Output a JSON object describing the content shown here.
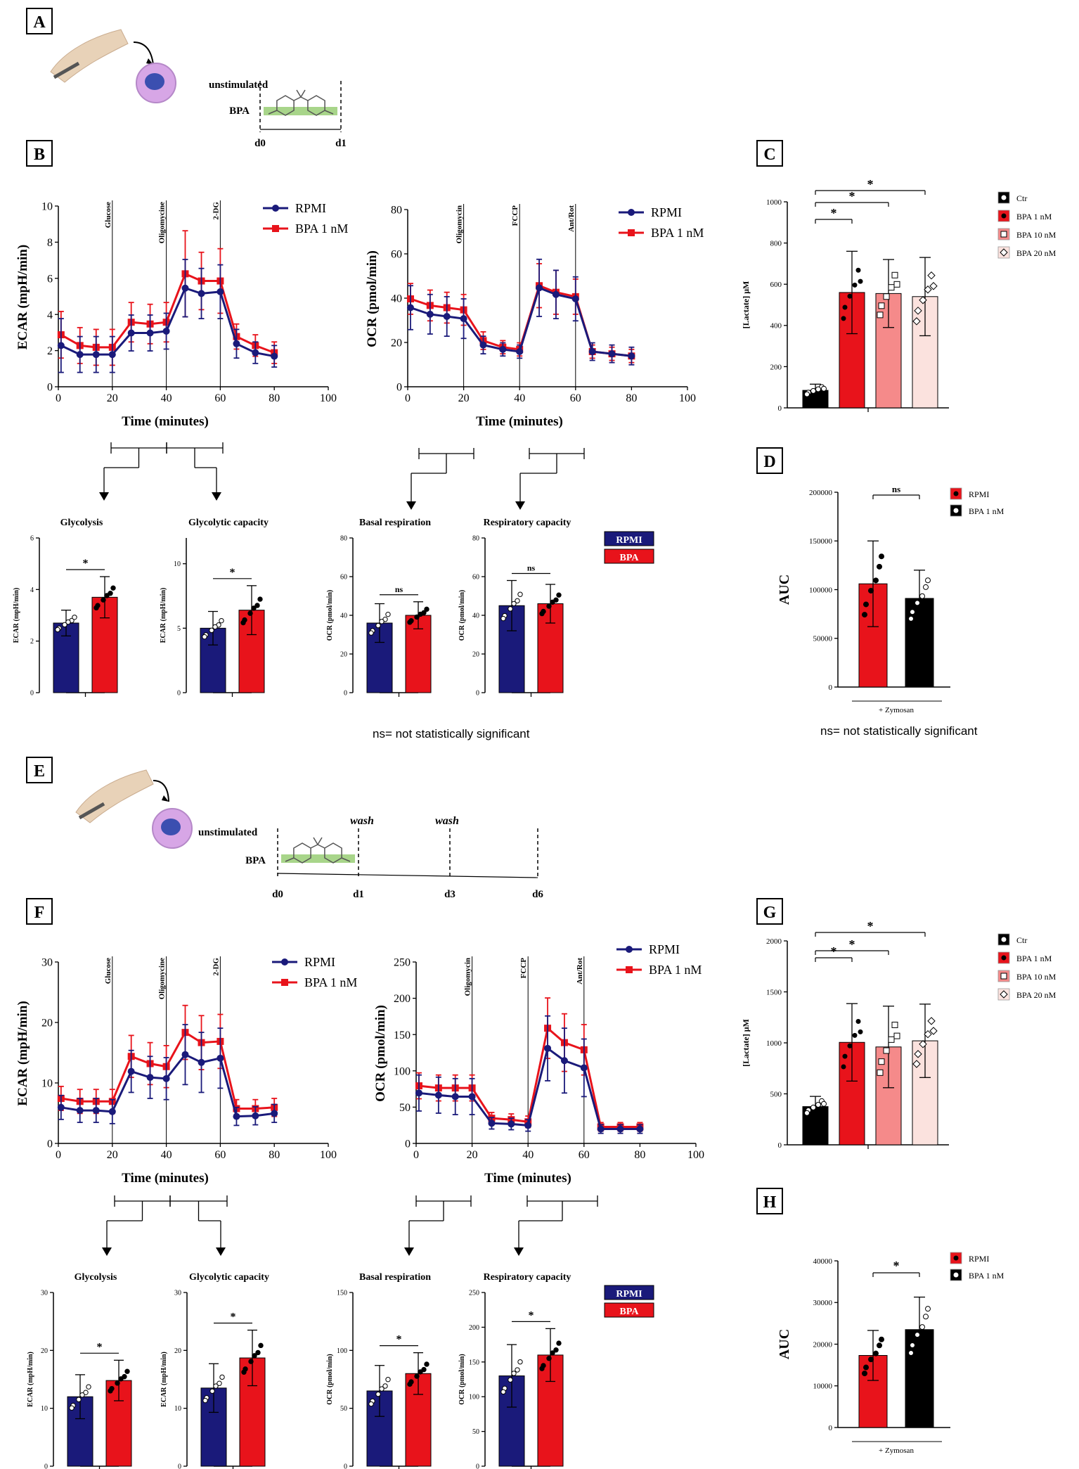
{
  "colors": {
    "rpmi": "#1a1a7a",
    "bpa": "#e8131b",
    "black": "#000000",
    "bpa10": "#f58a8a",
    "bpa20": "#fbe2de",
    "treat": "#a8d58a"
  },
  "panel_labels": [
    "A",
    "B",
    "C",
    "D",
    "E",
    "F",
    "G",
    "H"
  ],
  "schematic_A": {
    "unstimulated": "unstimulated",
    "bpa": "BPA",
    "days": [
      "d0",
      "d1"
    ]
  },
  "schematic_E": {
    "unstimulated": "unstimulated",
    "bpa": "BPA",
    "days": [
      "d0",
      "d1",
      "d3",
      "d6"
    ],
    "washes": [
      "wash",
      "wash"
    ]
  },
  "legend_seahorse": [
    "RPMI",
    "BPA 1 nM"
  ],
  "legend_box": [
    "RPMI",
    "BPA"
  ],
  "legend_lactate": [
    "Ctr",
    "BPA 1 nM",
    "BPA 10 nM",
    "BPA 20 nM"
  ],
  "legend_auc": [
    "RPMI",
    "BPA 1 nM"
  ],
  "labels": {
    "time_axis": "Time (minutes)",
    "ecar_axis": "ECAR (mpH/min)",
    "ocr_axis": "OCR (pmol/min)",
    "ecar_small": "ECAR (mpH/min)",
    "ocr_small": "OCR (pmol/min)",
    "lactate": "[Lactate] μM",
    "auc": "AUC",
    "zymosan": "+ Zymosan",
    "glycolysis": "Glycolysis",
    "glyco_cap": "Glycolytic capacity",
    "basal": "Basal respiration",
    "resp_cap": "Respiratory capacity",
    "injections_ecar": [
      "Glucose",
      "Oligomycine",
      "2-DG"
    ],
    "injections_ocr": [
      "Oligomycin",
      "FCCP",
      "Ant/Rot"
    ],
    "star": "*",
    "ns": "ns"
  },
  "notes": {
    "ns_note_B": "ns= not statistically significant",
    "ns_note_D": "ns= not statistically significant"
  },
  "chart_data": [
    {
      "id": "B_ecar",
      "type": "line",
      "title": "",
      "xlabel": "Time (minutes)",
      "ylabel": "ECAR (mpH/min)",
      "xlim": [
        0,
        100
      ],
      "ylim": [
        0,
        10
      ],
      "x": [
        1,
        8,
        14,
        20,
        27,
        34,
        40,
        47,
        53,
        60,
        66,
        73,
        80
      ],
      "series": [
        {
          "name": "RPMI",
          "values": [
            2.3,
            1.8,
            1.8,
            1.8,
            3.0,
            3.0,
            3.1,
            5.5,
            5.2,
            5.3,
            2.4,
            1.9,
            1.7
          ],
          "err": [
            1.5,
            1.0,
            1.0,
            1.0,
            1.0,
            1.0,
            1.0,
            1.6,
            1.4,
            1.5,
            0.8,
            0.6,
            0.6
          ]
        },
        {
          "name": "BPA 1 nM",
          "values": [
            2.9,
            2.3,
            2.2,
            2.2,
            3.6,
            3.5,
            3.6,
            6.3,
            5.9,
            5.9,
            2.8,
            2.3,
            1.9
          ],
          "err": [
            1.3,
            1.0,
            1.0,
            1.0,
            1.1,
            1.1,
            1.1,
            2.4,
            1.6,
            1.8,
            0.7,
            0.6,
            0.6
          ]
        }
      ]
    },
    {
      "id": "B_ocr",
      "type": "line",
      "title": "",
      "xlabel": "Time (minutes)",
      "ylabel": "OCR (pmol/min)",
      "xlim": [
        0,
        100
      ],
      "ylim": [
        0,
        80
      ],
      "x": [
        1,
        8,
        14,
        20,
        27,
        34,
        40,
        47,
        53,
        60,
        66,
        73,
        80
      ],
      "series": [
        {
          "name": "RPMI",
          "values": [
            36,
            33,
            32,
            31,
            19,
            17,
            16,
            45,
            42,
            40,
            16,
            15,
            14
          ],
          "err": [
            10,
            9,
            9,
            9,
            4,
            3,
            3,
            13,
            11,
            10,
            4,
            4,
            4
          ]
        },
        {
          "name": "BPA 1 nM",
          "values": [
            40,
            37,
            36,
            35,
            21,
            18,
            17,
            46,
            43,
            41,
            16,
            15,
            14
          ],
          "err": [
            7,
            7,
            7,
            7,
            4,
            3,
            3,
            10,
            10,
            8,
            3,
            3,
            3
          ]
        }
      ]
    },
    {
      "id": "B_glycolysis",
      "type": "bar",
      "title": "Glycolysis",
      "ylabel": "ECAR (mpH/min)",
      "ylim": [
        0,
        6
      ],
      "categories": [
        "RPMI",
        "BPA"
      ],
      "values": [
        2.7,
        3.7
      ],
      "err": [
        0.5,
        0.8
      ],
      "significance": "*"
    },
    {
      "id": "B_glyco_cap",
      "type": "bar",
      "title": "Glycolytic capacity",
      "ylabel": "ECAR (mpH/min)",
      "ylim": [
        0,
        12
      ],
      "categories": [
        "RPMI",
        "BPA"
      ],
      "values": [
        5.0,
        6.4
      ],
      "err": [
        1.3,
        1.9
      ],
      "significance": "*"
    },
    {
      "id": "B_basal",
      "type": "bar",
      "title": "Basal respiration",
      "ylabel": "OCR (pmol/min)",
      "ylim": [
        0,
        80
      ],
      "categories": [
        "RPMI",
        "BPA"
      ],
      "values": [
        36,
        40
      ],
      "err": [
        10,
        7
      ],
      "significance": "ns"
    },
    {
      "id": "B_resp_cap",
      "type": "bar",
      "title": "Respiratory capacity",
      "ylabel": "OCR (pmol/min)",
      "ylim": [
        0,
        80
      ],
      "categories": [
        "RPMI",
        "BPA"
      ],
      "values": [
        45,
        46
      ],
      "err": [
        13,
        10
      ],
      "significance": "ns"
    },
    {
      "id": "C_lactate",
      "type": "bar",
      "ylabel": "[Lactate] μM",
      "ylim": [
        0,
        1000
      ],
      "categories": [
        "Ctr",
        "BPA 1 nM",
        "BPA 10 nM",
        "BPA 20 nM"
      ],
      "values": [
        85,
        560,
        555,
        540
      ],
      "err": [
        30,
        200,
        165,
        190
      ],
      "significance": [
        "*",
        "*",
        "*"
      ]
    },
    {
      "id": "D_auc",
      "type": "bar",
      "ylabel": "AUC",
      "xlabel": "+ Zymosan",
      "ylim": [
        0,
        200000
      ],
      "categories": [
        "RPMI",
        "BPA 1 nM"
      ],
      "values": [
        106000,
        91000
      ],
      "err": [
        44000,
        29000
      ],
      "significance": "ns"
    },
    {
      "id": "F_ecar",
      "type": "line",
      "title": "",
      "xlabel": "Time (minutes)",
      "ylabel": "ECAR (mpH/min)",
      "xlim": [
        0,
        100
      ],
      "ylim": [
        0,
        30
      ],
      "x": [
        1,
        8,
        14,
        20,
        27,
        34,
        40,
        47,
        53,
        60,
        66,
        73,
        80
      ],
      "series": [
        {
          "name": "RPMI",
          "values": [
            6.0,
            5.5,
            5.5,
            5.3,
            12.0,
            11.0,
            10.8,
            14.8,
            13.5,
            14.2,
            4.5,
            4.6,
            5.0
          ],
          "err": [
            2.0,
            2.0,
            2.0,
            2.0,
            3.5,
            3.5,
            3.5,
            5.0,
            5.0,
            5.0,
            1.5,
            1.5,
            1.5
          ]
        },
        {
          "name": "BPA 1 nM",
          "values": [
            7.5,
            7.0,
            7.0,
            7.0,
            14.5,
            13.3,
            12.8,
            18.5,
            16.8,
            17.0,
            5.8,
            5.8,
            6.0
          ],
          "err": [
            2.0,
            2.0,
            2.0,
            2.0,
            3.5,
            3.5,
            3.5,
            4.5,
            4.5,
            4.5,
            1.5,
            1.5,
            1.5
          ]
        }
      ]
    },
    {
      "id": "F_ocr",
      "type": "line",
      "title": "",
      "xlabel": "Time (minutes)",
      "ylabel": "OCR (pmol/min)",
      "xlim": [
        0,
        100
      ],
      "ylim": [
        0,
        250
      ],
      "x": [
        1,
        8,
        14,
        20,
        27,
        34,
        40,
        47,
        53,
        60,
        66,
        73,
        80
      ],
      "series": [
        {
          "name": "RPMI",
          "values": [
            70,
            67,
            65,
            65,
            28,
            27,
            25,
            132,
            115,
            105,
            20,
            20,
            20
          ],
          "err": [
            25,
            25,
            25,
            25,
            8,
            8,
            8,
            45,
            45,
            40,
            6,
            6,
            6
          ]
        },
        {
          "name": "BPA 1 nM",
          "values": [
            80,
            77,
            77,
            77,
            35,
            33,
            30,
            160,
            140,
            130,
            23,
            23,
            23
          ],
          "err": [
            18,
            18,
            18,
            18,
            8,
            8,
            8,
            42,
            40,
            35,
            6,
            6,
            6
          ]
        }
      ]
    },
    {
      "id": "F_glycolysis",
      "type": "bar",
      "title": "Glycolysis",
      "ylabel": "ECAR (mpH/min)",
      "ylim": [
        0,
        30
      ],
      "categories": [
        "RPMI",
        "BPA"
      ],
      "values": [
        12.0,
        14.8
      ],
      "err": [
        3.8,
        3.5
      ],
      "significance": "*"
    },
    {
      "id": "F_glyco_cap",
      "type": "bar",
      "title": "Glycolytic capacity",
      "ylabel": "ECAR (mpH/min)",
      "ylim": [
        0,
        30
      ],
      "categories": [
        "RPMI",
        "BPA"
      ],
      "values": [
        13.5,
        18.7
      ],
      "err": [
        4.2,
        4.8
      ],
      "significance": "*"
    },
    {
      "id": "F_basal",
      "type": "bar",
      "title": "Basal respiration",
      "ylabel": "OCR (pmol/min)",
      "ylim": [
        0,
        150
      ],
      "categories": [
        "RPMI",
        "BPA"
      ],
      "values": [
        65,
        80
      ],
      "err": [
        22,
        18
      ],
      "significance": "*"
    },
    {
      "id": "F_resp_cap",
      "type": "bar",
      "title": "Respiratory capacity",
      "ylabel": "OCR (pmol/min)",
      "ylim": [
        0,
        250
      ],
      "categories": [
        "RPMI",
        "BPA"
      ],
      "values": [
        130,
        160
      ],
      "err": [
        45,
        38
      ],
      "significance": "*"
    },
    {
      "id": "G_lactate",
      "type": "bar",
      "ylabel": "[Lactate] μM",
      "ylim": [
        0,
        2000
      ],
      "categories": [
        "Ctr",
        "BPA 1 nM",
        "BPA 10 nM",
        "BPA 20 nM"
      ],
      "values": [
        375,
        1005,
        960,
        1020
      ],
      "err": [
        100,
        380,
        400,
        360
      ],
      "significance": [
        "*",
        "*",
        "*"
      ]
    },
    {
      "id": "H_auc",
      "type": "bar",
      "ylabel": "AUC",
      "xlabel": "+ Zymosan",
      "ylim": [
        0,
        40000
      ],
      "categories": [
        "RPMI",
        "BPA 1 nM"
      ],
      "values": [
        17300,
        23500
      ],
      "err": [
        6000,
        7800
      ],
      "significance": "*"
    }
  ]
}
